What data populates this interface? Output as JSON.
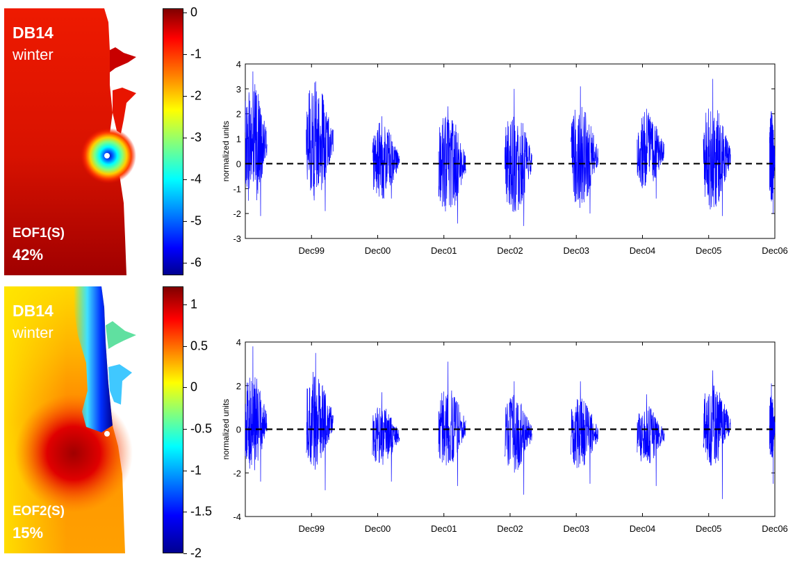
{
  "panels": [
    {
      "map": {
        "site": "DB14",
        "season": "winter",
        "mode": "EOF1(S)",
        "variance": "42%"
      },
      "colorbar": {
        "ticks": [
          "0",
          "-1",
          "-2",
          "-3",
          "-4",
          "-5",
          "-6"
        ],
        "tick_values": [
          0,
          -1,
          -2,
          -3,
          -4,
          -5,
          -6
        ],
        "range": [
          -6.3,
          0.1
        ]
      }
    },
    {
      "map": {
        "site": "DB14",
        "season": "winter",
        "mode": "EOF2(S)",
        "variance": "15%"
      },
      "colorbar": {
        "ticks": [
          "1",
          "0.5",
          "0",
          "-0.5",
          "-1",
          "-1.5",
          "-2"
        ],
        "tick_values": [
          1,
          0.5,
          0,
          -0.5,
          -1,
          -1.5,
          -2
        ],
        "range": [
          -2,
          1.22
        ]
      }
    }
  ],
  "chart_data": [
    {
      "type": "line",
      "ylabel": "normalized units",
      "xlabel": "",
      "ylim": [
        -3,
        4
      ],
      "yticks": [
        "-3",
        "-2",
        "-1",
        "0",
        "1",
        "2",
        "3",
        "4"
      ],
      "ytick_values": [
        -3,
        -2,
        -1,
        0,
        1,
        2,
        3,
        4
      ],
      "xtick_labels": [
        "Dec99",
        "Dec00",
        "Dec01",
        "Dec02",
        "Dec03",
        "Dec04",
        "Dec05",
        "Dec06"
      ],
      "xtick_years": [
        1999,
        2000,
        2001,
        2002,
        2003,
        2004,
        2005,
        2006
      ],
      "xlim_years": [
        1998,
        2006
      ],
      "grid": false,
      "reference_line": 0,
      "line_color": "#0000ff",
      "winter_segments": [
        {
          "start": 1998.0,
          "end": 1998.33,
          "center": 0.8,
          "amp": 2.6,
          "min": -2.1,
          "max": 3.7
        },
        {
          "start": 1998.92,
          "end": 1999.33,
          "center": 0.9,
          "amp": 2.4,
          "min": -1.9,
          "max": 3.3
        },
        {
          "start": 1999.92,
          "end": 2000.33,
          "center": 0.1,
          "amp": 1.6,
          "min": -1.4,
          "max": 1.9
        },
        {
          "start": 2000.92,
          "end": 2001.33,
          "center": 0.0,
          "amp": 2.1,
          "min": -2.4,
          "max": 2.3
        },
        {
          "start": 2001.92,
          "end": 2002.33,
          "center": 0.1,
          "amp": 2.2,
          "min": -2.5,
          "max": 3.0
        },
        {
          "start": 2002.92,
          "end": 2003.33,
          "center": 0.3,
          "amp": 2.1,
          "min": -2.0,
          "max": 3.1
        },
        {
          "start": 2003.92,
          "end": 2004.33,
          "center": 0.5,
          "amp": 1.6,
          "min": -1.4,
          "max": 2.2
        },
        {
          "start": 2004.92,
          "end": 2005.33,
          "center": 0.3,
          "amp": 2.2,
          "min": -2.1,
          "max": 3.4
        },
        {
          "start": 2005.92,
          "end": 2006.0,
          "center": 0.2,
          "amp": 1.9,
          "min": -2.0,
          "max": 2.1
        }
      ]
    },
    {
      "type": "line",
      "ylabel": "normalized units",
      "xlabel": "",
      "ylim": [
        -4,
        4
      ],
      "yticks": [
        "-4",
        "-2",
        "0",
        "2",
        "4"
      ],
      "ytick_values": [
        -4,
        -2,
        0,
        2,
        4
      ],
      "xtick_labels": [
        "Dec99",
        "Dec00",
        "Dec01",
        "Dec02",
        "Dec03",
        "Dec04",
        "Dec05",
        "Dec06"
      ],
      "xtick_years": [
        1999,
        2000,
        2001,
        2002,
        2003,
        2004,
        2005,
        2006
      ],
      "xlim_years": [
        1998,
        2006
      ],
      "grid": false,
      "reference_line": 0,
      "line_color": "#0000ff",
      "winter_segments": [
        {
          "start": 1998.0,
          "end": 1998.33,
          "center": 0.3,
          "amp": 2.3,
          "min": -2.4,
          "max": 3.8
        },
        {
          "start": 1998.92,
          "end": 1999.33,
          "center": 0.4,
          "amp": 2.3,
          "min": -2.8,
          "max": 3.5
        },
        {
          "start": 1999.92,
          "end": 2000.33,
          "center": -0.3,
          "amp": 1.4,
          "min": -2.4,
          "max": 1.7
        },
        {
          "start": 2000.92,
          "end": 2001.33,
          "center": 0.1,
          "amp": 1.9,
          "min": -2.6,
          "max": 3.1
        },
        {
          "start": 2001.92,
          "end": 2002.33,
          "center": -0.2,
          "amp": 1.8,
          "min": -3.0,
          "max": 2.2
        },
        {
          "start": 2002.92,
          "end": 2003.33,
          "center": -0.2,
          "amp": 1.7,
          "min": -2.5,
          "max": 2.2
        },
        {
          "start": 2003.92,
          "end": 2004.33,
          "center": -0.3,
          "amp": 1.4,
          "min": -2.6,
          "max": 1.6
        },
        {
          "start": 2004.92,
          "end": 2005.33,
          "center": 0.2,
          "amp": 1.9,
          "min": -3.2,
          "max": 2.7
        },
        {
          "start": 2005.92,
          "end": 2006.0,
          "center": 0.1,
          "amp": 1.6,
          "min": -2.5,
          "max": 2.1
        }
      ]
    }
  ]
}
